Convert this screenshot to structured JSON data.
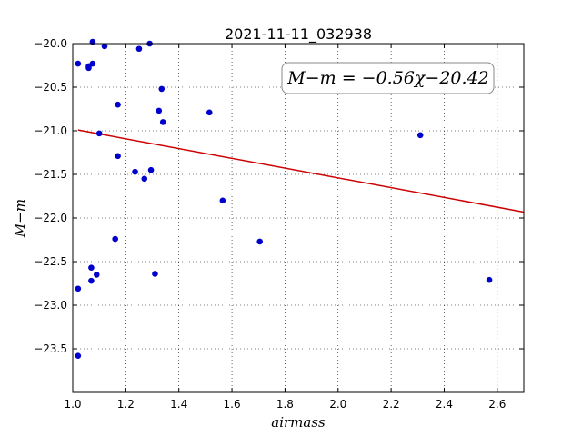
{
  "chart_data": {
    "type": "scatter",
    "title": "2021-11-11_032938",
    "xlabel": "airmass",
    "ylabel": "M−m",
    "xlim": [
      1.0,
      2.7
    ],
    "ylim": [
      -20.0,
      -24.0
    ],
    "y_axis_inverted": true,
    "grid": true,
    "xticks": [
      "1.0",
      "1.2",
      "1.4",
      "1.6",
      "1.8",
      "2.0",
      "2.2",
      "2.4",
      "2.6"
    ],
    "xtick_values": [
      1.0,
      1.2,
      1.4,
      1.6,
      1.8,
      2.0,
      2.2,
      2.4,
      2.6
    ],
    "yticks": [
      "−20.0",
      "−20.5",
      "−21.0",
      "−21.5",
      "−22.0",
      "−22.5",
      "−23.0",
      "−23.5"
    ],
    "ytick_values": [
      -20.0,
      -20.5,
      -21.0,
      -21.5,
      -22.0,
      -22.5,
      -23.0,
      -23.5
    ],
    "annotation": "M−m = −0.56χ−20.42",
    "fit_line": {
      "slope": -0.56,
      "intercept": -20.42,
      "color": "#cc0000"
    },
    "point_color": "#0000cc",
    "points": [
      {
        "x": 1.02,
        "y": -20.23
      },
      {
        "x": 1.06,
        "y": -20.26
      },
      {
        "x": 1.06,
        "y": -20.28
      },
      {
        "x": 1.075,
        "y": -20.23
      },
      {
        "x": 1.075,
        "y": -19.98
      },
      {
        "x": 1.12,
        "y": -20.03
      },
      {
        "x": 1.25,
        "y": -20.06
      },
      {
        "x": 1.29,
        "y": -20.0
      },
      {
        "x": 1.335,
        "y": -20.52
      },
      {
        "x": 1.17,
        "y": -20.7
      },
      {
        "x": 1.325,
        "y": -20.77
      },
      {
        "x": 1.34,
        "y": -20.9
      },
      {
        "x": 1.1,
        "y": -21.03
      },
      {
        "x": 1.17,
        "y": -21.29
      },
      {
        "x": 1.235,
        "y": -21.47
      },
      {
        "x": 1.27,
        "y": -21.55
      },
      {
        "x": 1.295,
        "y": -21.45
      },
      {
        "x": 1.515,
        "y": -20.79
      },
      {
        "x": 1.565,
        "y": -21.8
      },
      {
        "x": 1.16,
        "y": -22.24
      },
      {
        "x": 1.705,
        "y": -22.27
      },
      {
        "x": 1.07,
        "y": -22.57
      },
      {
        "x": 1.09,
        "y": -22.65
      },
      {
        "x": 1.07,
        "y": -22.72
      },
      {
        "x": 1.31,
        "y": -22.64
      },
      {
        "x": 1.02,
        "y": -22.81
      },
      {
        "x": 1.02,
        "y": -23.58
      },
      {
        "x": 2.31,
        "y": -21.05
      },
      {
        "x": 2.57,
        "y": -22.71
      }
    ]
  }
}
